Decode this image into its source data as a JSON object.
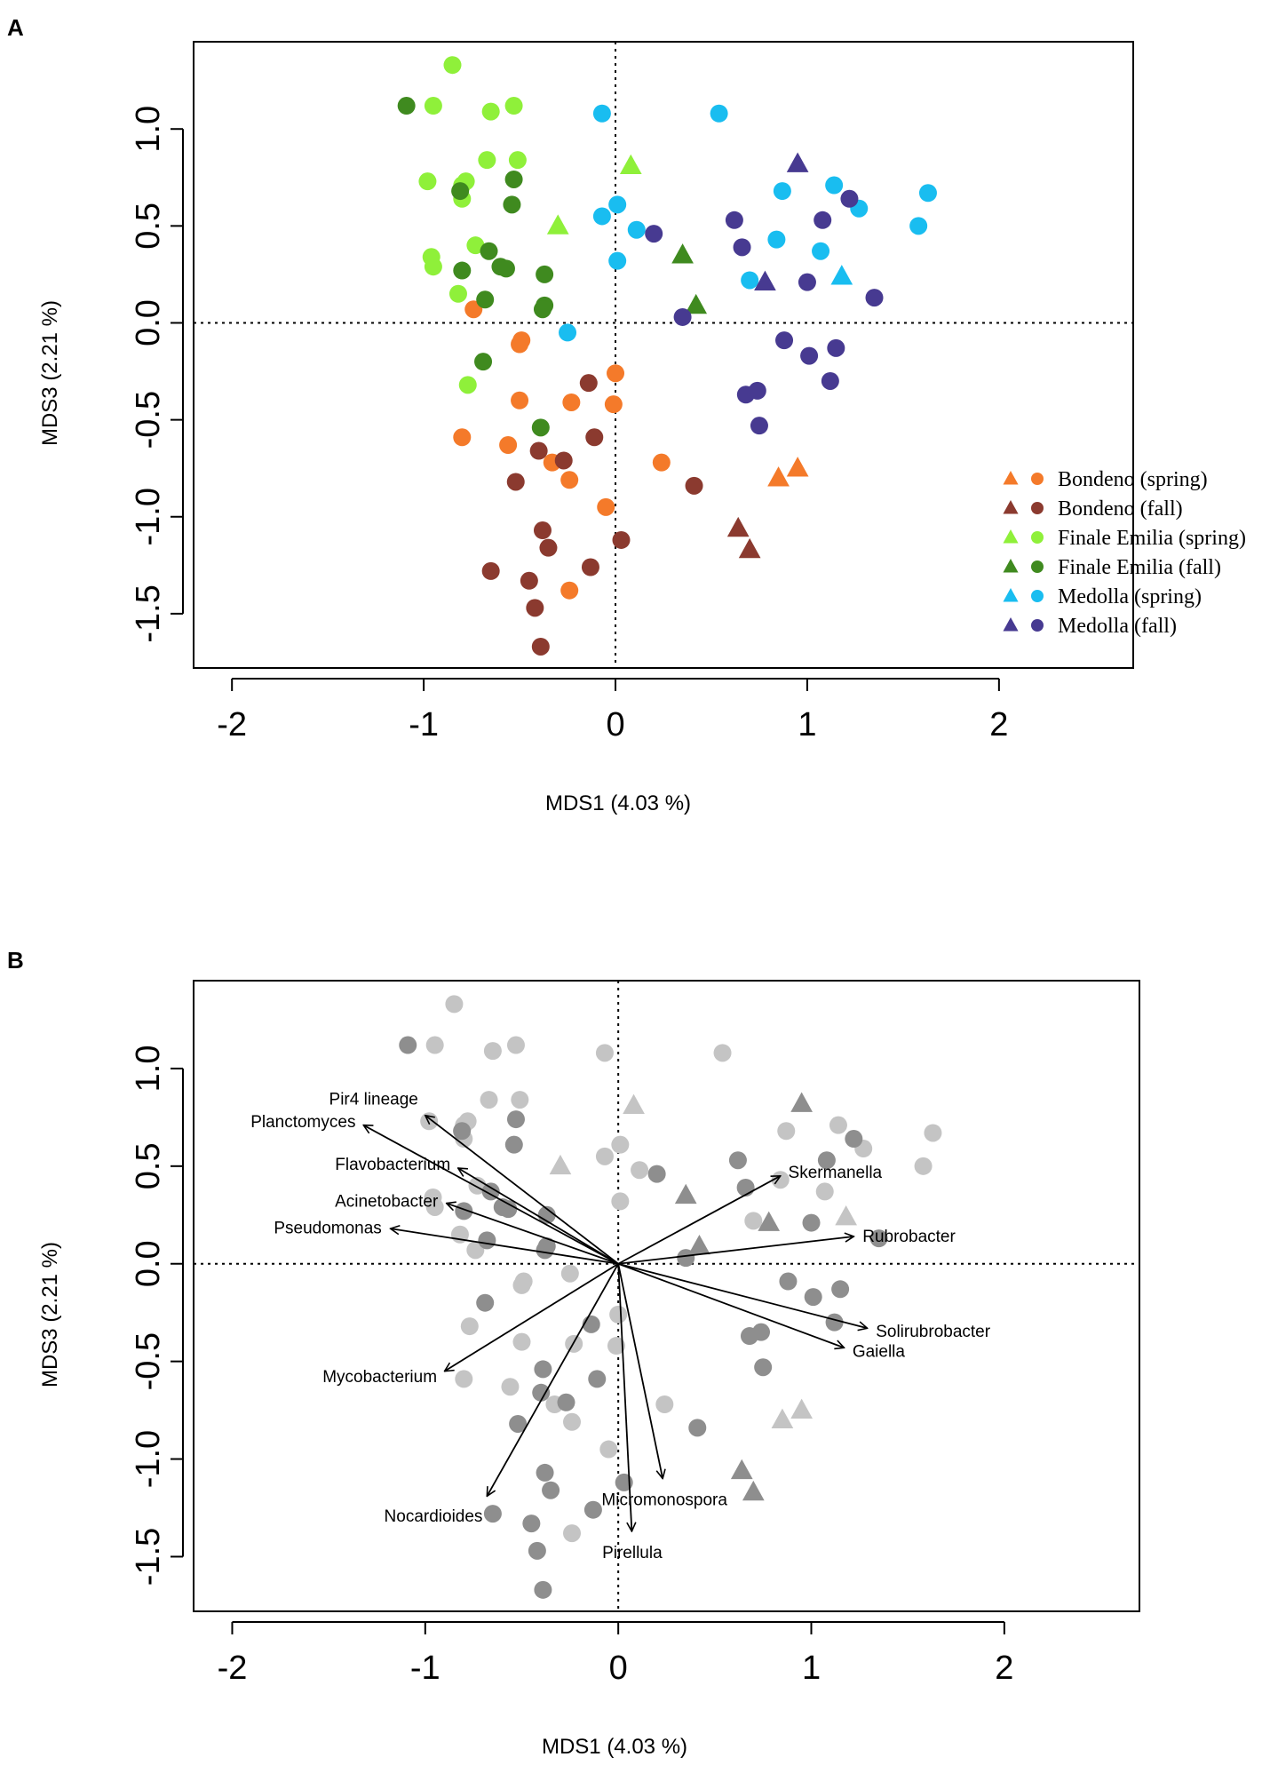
{
  "panels": [
    {
      "label": "A",
      "xlabel": "MDS1 (4.03 %)",
      "ylabel": "MDS3 (2.21 %)"
    },
    {
      "label": "B",
      "xlabel": "MDS1 (4.03 %)",
      "ylabel": "MDS3 (2.21 %)"
    }
  ],
  "legend": [
    {
      "group": "bsp",
      "label": "Bondeno (spring)"
    },
    {
      "group": "bfa",
      "label": "Bondeno (fall)"
    },
    {
      "group": "fsp",
      "label": "Finale Emilia (spring)"
    },
    {
      "group": "ffa",
      "label": "Finale Emilia (fall)"
    },
    {
      "group": "msp",
      "label": "Medolla (spring)"
    },
    {
      "group": "mfa",
      "label": "Medolla (fall)"
    }
  ],
  "chart_data": [
    {
      "type": "scatter",
      "title": "",
      "xlabel": "MDS1 (4.03 %)",
      "ylabel": "MDS3 (2.21 %)",
      "xlim": [
        -2.2,
        2.7
      ],
      "ylim": [
        -1.78,
        1.45
      ],
      "xticks": [
        -2,
        -1,
        0,
        1,
        2
      ],
      "yticks": [
        -1.5,
        -1.0,
        -0.5,
        0.0,
        0.5,
        1.0
      ],
      "xtick_labels": [
        "-2",
        "-1",
        "0",
        "1",
        "2"
      ],
      "ytick_labels": [
        "-1.5",
        "-1.0",
        "-0.5",
        "0.0",
        "0.5",
        "1.0"
      ],
      "reference_lines": {
        "x": 0,
        "y": 0,
        "style": "dotted"
      },
      "legend_position": "bottom-right",
      "colors": {
        "bsp": "#f47a2a",
        "bfa": "#8b3a2f",
        "fsp": "#8ff03a",
        "ffa": "#3f8a1f",
        "msp": "#19bdf0",
        "mfa": "#473a91"
      },
      "series": [
        {
          "name": "Bondeno (spring)",
          "key": "bsp",
          "circles": [
            [
              -0.8,
              -0.59
            ],
            [
              -0.74,
              0.07
            ],
            [
              -0.56,
              -0.63
            ],
            [
              -0.5,
              -0.11
            ],
            [
              -0.49,
              -0.09
            ],
            [
              -0.5,
              -0.4
            ],
            [
              -0.33,
              -0.72
            ],
            [
              -0.24,
              -0.81
            ],
            [
              -0.23,
              -0.41
            ],
            [
              -0.24,
              -1.38
            ],
            [
              -0.05,
              -0.95
            ],
            [
              -0.01,
              -0.42
            ],
            [
              0.0,
              -0.26
            ],
            [
              0.24,
              -0.72
            ]
          ],
          "triangles": [
            [
              0.85,
              -0.8
            ],
            [
              0.95,
              -0.75
            ]
          ]
        },
        {
          "name": "Bondeno (fall)",
          "key": "bfa",
          "circles": [
            [
              -0.65,
              -1.28
            ],
            [
              -0.52,
              -0.82
            ],
            [
              -0.45,
              -1.33
            ],
            [
              -0.42,
              -1.47
            ],
            [
              -0.4,
              -0.66
            ],
            [
              -0.38,
              -1.07
            ],
            [
              -0.35,
              -1.16
            ],
            [
              -0.27,
              -0.71
            ],
            [
              -0.13,
              -1.26
            ],
            [
              -0.14,
              -0.31
            ],
            [
              -0.11,
              -0.59
            ],
            [
              0.03,
              -1.12
            ],
            [
              0.41,
              -0.84
            ],
            [
              -0.39,
              -1.67
            ]
          ],
          "triangles": [
            [
              0.64,
              -1.06
            ],
            [
              0.7,
              -1.17
            ]
          ]
        },
        {
          "name": "Finale Emilia (spring)",
          "key": "fsp",
          "circles": [
            [
              -0.85,
              1.33
            ],
            [
              -0.95,
              1.12
            ],
            [
              -0.65,
              1.09
            ],
            [
              -0.53,
              1.12
            ],
            [
              -0.98,
              0.73
            ],
            [
              -0.8,
              0.71
            ],
            [
              -0.78,
              0.73
            ],
            [
              -0.67,
              0.84
            ],
            [
              -0.51,
              0.84
            ],
            [
              -0.8,
              0.64
            ],
            [
              -0.96,
              0.34
            ],
            [
              -0.95,
              0.29
            ],
            [
              -0.73,
              0.4
            ],
            [
              -0.82,
              0.15
            ],
            [
              -0.77,
              -0.32
            ]
          ],
          "triangles": [
            [
              0.08,
              0.81
            ],
            [
              -0.3,
              0.5
            ]
          ]
        },
        {
          "name": "Finale Emilia (fall)",
          "key": "ffa",
          "circles": [
            [
              -1.09,
              1.12
            ],
            [
              -0.53,
              0.74
            ],
            [
              -0.81,
              0.68
            ],
            [
              -0.54,
              0.61
            ],
            [
              -0.66,
              0.37
            ],
            [
              -0.6,
              0.29
            ],
            [
              -0.57,
              0.28
            ],
            [
              -0.8,
              0.27
            ],
            [
              -0.37,
              0.25
            ],
            [
              -0.68,
              0.12
            ],
            [
              -0.37,
              0.09
            ],
            [
              -0.38,
              0.07
            ],
            [
              -0.69,
              -0.2
            ],
            [
              -0.39,
              -0.54
            ]
          ],
          "triangles": [
            [
              0.35,
              0.35
            ],
            [
              0.42,
              0.09
            ]
          ]
        },
        {
          "name": "Medolla (spring)",
          "key": "msp",
          "circles": [
            [
              -0.07,
              1.08
            ],
            [
              0.54,
              1.08
            ],
            [
              -0.07,
              0.55
            ],
            [
              0.01,
              0.61
            ],
            [
              0.11,
              0.48
            ],
            [
              0.01,
              0.32
            ],
            [
              -0.25,
              -0.05
            ],
            [
              0.87,
              0.68
            ],
            [
              1.14,
              0.71
            ],
            [
              1.27,
              0.59
            ],
            [
              0.84,
              0.43
            ],
            [
              1.07,
              0.37
            ],
            [
              1.58,
              0.5
            ],
            [
              1.63,
              0.67
            ],
            [
              0.7,
              0.22
            ]
          ],
          "triangles": [
            [
              1.18,
              0.24
            ]
          ]
        },
        {
          "name": "Medolla (fall)",
          "key": "mfa",
          "circles": [
            [
              0.2,
              0.46
            ],
            [
              0.62,
              0.53
            ],
            [
              0.66,
              0.39
            ],
            [
              1.08,
              0.53
            ],
            [
              1.22,
              0.64
            ],
            [
              1.0,
              0.21
            ],
            [
              1.35,
              0.13
            ],
            [
              0.35,
              0.03
            ],
            [
              0.88,
              -0.09
            ],
            [
              1.01,
              -0.17
            ],
            [
              1.15,
              -0.13
            ],
            [
              1.12,
              -0.3
            ],
            [
              0.68,
              -0.37
            ],
            [
              0.74,
              -0.35
            ],
            [
              0.75,
              -0.53
            ]
          ],
          "triangles": [
            [
              0.95,
              0.82
            ],
            [
              0.78,
              0.21
            ]
          ]
        }
      ]
    },
    {
      "type": "scatter",
      "title": "",
      "subtype": "biplot",
      "xlabel": "MDS1 (4.03 %)",
      "ylabel": "MDS3 (2.21 %)",
      "xlim": [
        -2.2,
        2.7
      ],
      "ylim": [
        -1.78,
        1.45
      ],
      "xticks": [
        -2,
        -1,
        0,
        1,
        2
      ],
      "yticks": [
        -1.5,
        -1.0,
        -0.5,
        0.0,
        0.5,
        1.0
      ],
      "xtick_labels": [
        "-2",
        "-1",
        "0",
        "1",
        "2"
      ],
      "ytick_labels": [
        "-1.5",
        "-1.0",
        "-0.5",
        "0.0",
        "0.5",
        "1.0"
      ],
      "reference_lines": {
        "x": 0,
        "y": 0,
        "style": "dotted"
      },
      "point_colors": {
        "spring": "#c4c4c4",
        "fall": "#8e8e8e"
      },
      "points_note": "same sample positions as panel A, shaded grey",
      "vectors": [
        {
          "name": "Planctomyces",
          "x": -1.32,
          "y": 0.71
        },
        {
          "name": "Pir4 lineage",
          "x": -1.0,
          "y": 0.76
        },
        {
          "name": "Flavobacterium",
          "x": -0.83,
          "y": 0.49
        },
        {
          "name": "Acinetobacter",
          "x": -0.89,
          "y": 0.31
        },
        {
          "name": "Pseudomonas",
          "x": -1.18,
          "y": 0.18
        },
        {
          "name": "Mycobacterium",
          "x": -0.9,
          "y": -0.55
        },
        {
          "name": "Nocardioides",
          "x": -0.68,
          "y": -1.19
        },
        {
          "name": "Pirellula",
          "x": 0.07,
          "y": -1.37
        },
        {
          "name": "Micromonospora",
          "x": 0.23,
          "y": -1.1
        },
        {
          "name": "Skermanella",
          "x": 0.84,
          "y": 0.45
        },
        {
          "name": "Rubrobacter",
          "x": 1.22,
          "y": 0.14
        },
        {
          "name": "Solirubrobacter",
          "x": 1.29,
          "y": -0.33
        },
        {
          "name": "Gaiella",
          "x": 1.17,
          "y": -0.43
        }
      ]
    }
  ]
}
